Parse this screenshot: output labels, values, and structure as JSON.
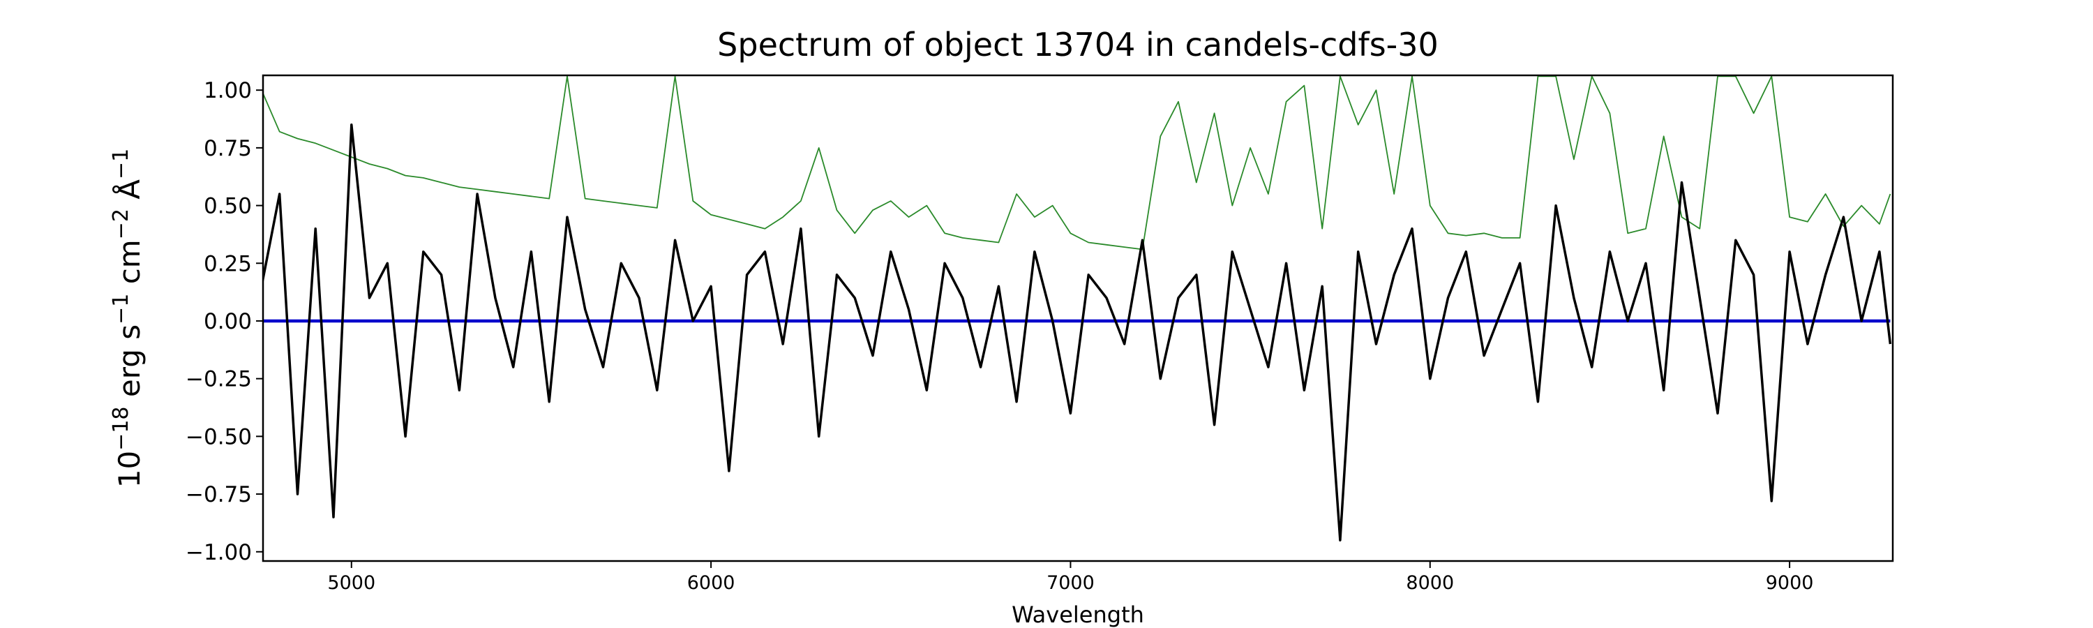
{
  "chart_data": {
    "type": "line",
    "title": "Spectrum of object 13704 in candels-cdfs-30",
    "xlabel": "Wavelength",
    "ylabel": [
      "10",
      "−18",
      " erg s",
      "−1",
      " cm",
      "−2",
      " Å",
      "−1"
    ],
    "x": [
      4750,
      4800,
      4850,
      4900,
      4950,
      5000,
      5050,
      5100,
      5150,
      5200,
      5250,
      5300,
      5350,
      5400,
      5450,
      5500,
      5550,
      5600,
      5650,
      5700,
      5750,
      5800,
      5850,
      5900,
      5950,
      6000,
      6050,
      6100,
      6150,
      6200,
      6250,
      6300,
      6350,
      6400,
      6450,
      6500,
      6550,
      6600,
      6650,
      6700,
      6750,
      6800,
      6850,
      6900,
      6950,
      7000,
      7050,
      7100,
      7150,
      7200,
      7250,
      7300,
      7350,
      7400,
      7450,
      7500,
      7550,
      7600,
      7650,
      7700,
      7750,
      7800,
      7850,
      7900,
      7950,
      8000,
      8050,
      8100,
      8150,
      8200,
      8250,
      8300,
      8350,
      8400,
      8450,
      8500,
      8550,
      8600,
      8650,
      8700,
      8750,
      8800,
      8850,
      8900,
      8950,
      9000,
      9050,
      9100,
      9150,
      9200,
      9250,
      9280
    ],
    "series": [
      {
        "color": "#2a8a2a",
        "values": [
          1.0,
          0.82,
          0.79,
          0.77,
          0.74,
          0.71,
          0.68,
          0.66,
          0.63,
          0.62,
          0.6,
          0.58,
          0.57,
          0.56,
          0.55,
          0.54,
          0.53,
          1.06,
          0.53,
          0.52,
          0.51,
          0.5,
          0.49,
          1.06,
          0.52,
          0.46,
          0.44,
          0.42,
          0.4,
          0.45,
          0.52,
          0.75,
          0.48,
          0.38,
          0.48,
          0.52,
          0.45,
          0.5,
          0.38,
          0.36,
          0.35,
          0.34,
          0.55,
          0.45,
          0.5,
          0.38,
          0.34,
          0.33,
          0.32,
          0.31,
          0.8,
          0.95,
          0.6,
          0.9,
          0.5,
          0.75,
          0.55,
          0.95,
          1.02,
          0.4,
          1.06,
          0.85,
          1.0,
          0.55,
          1.06,
          0.5,
          0.38,
          0.37,
          0.38,
          0.36,
          0.36,
          1.06,
          1.06,
          0.7,
          1.06,
          0.9,
          0.38,
          0.4,
          0.8,
          0.45,
          0.4,
          1.06,
          1.06,
          0.9,
          1.06,
          0.45,
          0.43,
          0.55,
          0.41,
          0.5,
          0.42,
          0.55
        ]
      },
      {
        "color": "#0000cc",
        "values": [
          0,
          0,
          0,
          0,
          0,
          0,
          0,
          0,
          0,
          0,
          0,
          0,
          0,
          0,
          0,
          0,
          0,
          0,
          0,
          0,
          0,
          0,
          0,
          0,
          0,
          0,
          0,
          0,
          0,
          0,
          0,
          0,
          0,
          0,
          0,
          0,
          0,
          0,
          0,
          0,
          0,
          0,
          0,
          0,
          0,
          0,
          0,
          0,
          0,
          0,
          0,
          0,
          0,
          0,
          0,
          0,
          0,
          0,
          0,
          0,
          0,
          0,
          0,
          0,
          0,
          0,
          0,
          0,
          0,
          0,
          0,
          0,
          0,
          0,
          0,
          0,
          0,
          0,
          0,
          0,
          0,
          0,
          0,
          0,
          0,
          0,
          0,
          0,
          0,
          0,
          0,
          0
        ]
      },
      {
        "color": "#000000",
        "values": [
          0.15,
          0.55,
          -0.75,
          0.4,
          -0.85,
          0.85,
          0.1,
          0.25,
          -0.5,
          0.3,
          0.2,
          -0.3,
          0.55,
          0.1,
          -0.2,
          0.3,
          -0.35,
          0.45,
          0.05,
          -0.2,
          0.25,
          0.1,
          -0.3,
          0.35,
          0.0,
          0.15,
          -0.65,
          0.2,
          0.3,
          -0.1,
          0.4,
          -0.5,
          0.2,
          0.1,
          -0.15,
          0.3,
          0.05,
          -0.3,
          0.25,
          0.1,
          -0.2,
          0.15,
          -0.35,
          0.3,
          0.0,
          -0.4,
          0.2,
          0.1,
          -0.1,
          0.35,
          -0.25,
          0.1,
          0.2,
          -0.45,
          0.3,
          0.05,
          -0.2,
          0.25,
          -0.3,
          0.15,
          -0.95,
          0.3,
          -0.1,
          0.2,
          0.4,
          -0.25,
          0.1,
          0.3,
          -0.15,
          0.05,
          0.25,
          -0.35,
          0.5,
          0.1,
          -0.2,
          0.3,
          0.0,
          0.25,
          -0.3,
          0.6,
          0.1,
          -0.4,
          0.35,
          0.2,
          -0.78,
          0.3,
          -0.1,
          0.2,
          0.45,
          0.0,
          0.3,
          -0.1
        ]
      }
    ],
    "xlim": [
      4754,
      9287
    ],
    "ylim": [
      -1.04,
      1.064
    ],
    "xticks": [
      5000,
      6000,
      7000,
      8000,
      9000
    ],
    "yticks": [
      {
        "value": -1,
        "label": "−1.00"
      },
      {
        "value": -0.75,
        "label": "−0.75"
      },
      {
        "value": -0.5,
        "label": "−0.50"
      },
      {
        "value": -0.25,
        "label": "−0.25"
      },
      {
        "value": 0,
        "label": "0.00"
      },
      0.25,
      {
        "value": 0.5,
        "label": "0.50"
      },
      0.75,
      {
        "value": 1,
        "label": "1.00"
      }
    ],
    "grid": false
  }
}
